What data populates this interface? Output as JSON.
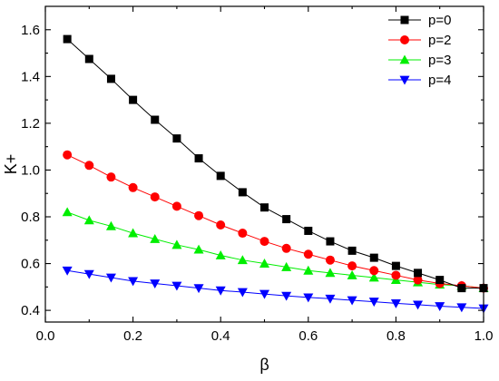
{
  "chart_data": {
    "type": "line",
    "xlabel": "β",
    "ylabel": "K+",
    "xlim": [
      0.0,
      1.0
    ],
    "ylim": [
      0.35,
      1.7
    ],
    "xticks": [
      0.0,
      0.2,
      0.4,
      0.6,
      0.8,
      1.0
    ],
    "yticks": [
      0.4,
      0.6,
      0.8,
      1.0,
      1.2,
      1.4,
      1.6
    ],
    "xtick_labels": [
      "0.0",
      "0.2",
      "0.4",
      "0.6",
      "0.8",
      "1.0"
    ],
    "ytick_labels": [
      "0.4",
      "0.6",
      "0.8",
      "1.0",
      "1.2",
      "1.4",
      "1.6"
    ],
    "grid": false,
    "legend_position": "top-right",
    "x": [
      0.05,
      0.1,
      0.15,
      0.2,
      0.25,
      0.3,
      0.35,
      0.4,
      0.45,
      0.5,
      0.55,
      0.6,
      0.65,
      0.7,
      0.75,
      0.8,
      0.85,
      0.9,
      0.95,
      1.0
    ],
    "series": [
      {
        "name": "p=0",
        "color": "#000000",
        "marker": "square",
        "values": [
          1.56,
          1.475,
          1.39,
          1.3,
          1.215,
          1.135,
          1.05,
          0.975,
          0.905,
          0.84,
          0.79,
          0.74,
          0.695,
          0.655,
          0.625,
          0.59,
          0.56,
          0.53,
          0.495,
          0.495
        ]
      },
      {
        "name": "p=2",
        "color": "#ff0000",
        "marker": "circle",
        "values": [
          1.065,
          1.02,
          0.97,
          0.925,
          0.885,
          0.845,
          0.805,
          0.765,
          0.73,
          0.695,
          0.665,
          0.64,
          0.615,
          0.59,
          0.57,
          0.55,
          0.53,
          0.515,
          0.505,
          0.495
        ]
      },
      {
        "name": "p=3",
        "color": "#00ee00",
        "marker": "triangle-up",
        "values": [
          0.82,
          0.785,
          0.76,
          0.73,
          0.705,
          0.68,
          0.66,
          0.635,
          0.615,
          0.6,
          0.585,
          0.57,
          0.56,
          0.55,
          0.54,
          0.53,
          0.52,
          0.51,
          0.505,
          0.495
        ]
      },
      {
        "name": "p=4",
        "color": "#0000ff",
        "marker": "triangle-down",
        "values": [
          0.57,
          0.555,
          0.54,
          0.525,
          0.515,
          0.505,
          0.495,
          0.485,
          0.478,
          0.47,
          0.462,
          0.455,
          0.45,
          0.443,
          0.437,
          0.43,
          0.424,
          0.418,
          0.413,
          0.408
        ]
      }
    ]
  }
}
